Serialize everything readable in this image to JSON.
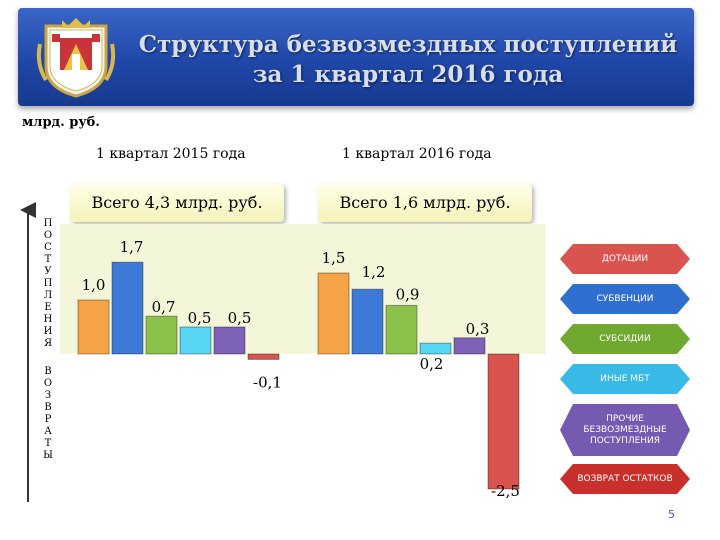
{
  "header": {
    "title_line1": "Структура безвозмездных поступлений",
    "title_line2": "за 1 квартал 2016 года"
  },
  "unit_label": "млрд. руб.",
  "axis_labels": {
    "income": "П\nО\nС\nТ\nУ\nП\nЛ\nЕ\nН\nИ\nЯ",
    "returns": "В\nО\nЗ\nВ\nР\nА\nТ\nЫ"
  },
  "chart_data": {
    "type": "bar",
    "categories": [
      "1 квартал 2015 года",
      "1 квартал 2016 года"
    ],
    "totals": [
      "Всего  4,3 млрд. руб.",
      "Всего  1,6 млрд. руб."
    ],
    "series": [
      {
        "name": "ДОТАЦИИ",
        "color": "#f5a347",
        "values": [
          1.0,
          1.5
        ],
        "labels": [
          "1,0",
          "1,5"
        ]
      },
      {
        "name": "СУБВЕНЦИИ",
        "color": "#3d7ad8",
        "values": [
          1.7,
          1.2
        ],
        "labels": [
          "1,7",
          "1,2"
        ]
      },
      {
        "name": "СУБСИДИИ",
        "color": "#8cc24a",
        "values": [
          0.7,
          0.9
        ],
        "labels": [
          "0,7",
          "0,9"
        ]
      },
      {
        "name": "ИНЫЕ МБТ",
        "color": "#58d4f4",
        "values": [
          0.5,
          0.2
        ],
        "labels": [
          "0,5",
          "0,2"
        ]
      },
      {
        "name": "ПРОЧИЕ БЕЗВОЗМЕЗДНЫЕ ПОСТУПЛЕНИЯ",
        "color": "#7e62b8",
        "values": [
          0.5,
          0.3
        ],
        "labels": [
          "0,5",
          "0,3"
        ]
      },
      {
        "name": "ВОЗВРАТ ОСТАТКОВ",
        "color": "#d9534f",
        "values": [
          -0.1,
          -2.5
        ],
        "labels": [
          "-0,1",
          "-2,5"
        ]
      }
    ],
    "ylim": [
      -2.6,
      2.0
    ]
  },
  "legend": [
    {
      "label": "ДОТАЦИИ",
      "color": "#d9534f"
    },
    {
      "label": "СУБВЕНЦИИ",
      "color": "#2f6fd0"
    },
    {
      "label": "СУБСИДИИ",
      "color": "#6fa92f"
    },
    {
      "label": "ИНЫЕ МБТ",
      "color": "#38b9e6"
    },
    {
      "label": "ПРОЧИЕ БЕЗВОЗМЕЗДНЫЕ ПОСТУПЛЕНИЯ",
      "color": "#7659b0"
    },
    {
      "label": "ВОЗВРАТ ОСТАТКОВ",
      "color": "#c9302c"
    }
  ],
  "page_number": "5"
}
